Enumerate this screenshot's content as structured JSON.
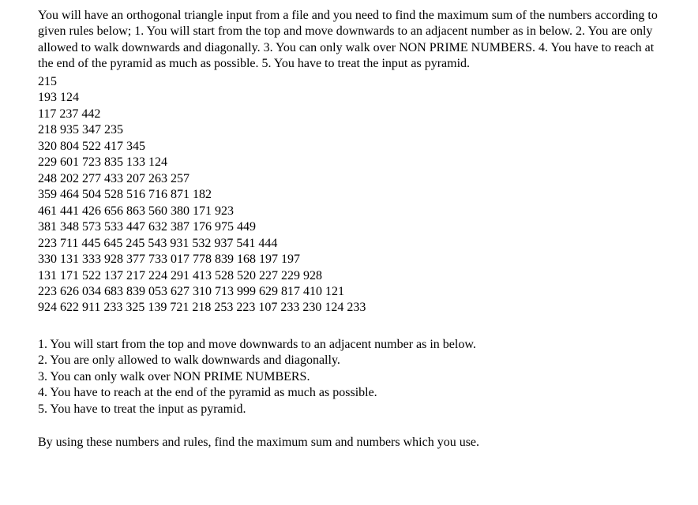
{
  "intro": "You will have an orthogonal triangle input from a file and you need to find the maximum sum of the numbers according to given rules below; 1. You will start from the top and move downwards to an adjacent number as in below. 2. You are only allowed to walk downwards and diagonally. 3. You can only walk over NON PRIME NUMBERS. 4. You have to reach at the end of the pyramid as much as possible. 5. You have to treat the input as pyramid.",
  "pyramid": [
    "215",
    "193 124",
    "117 237 442",
    "218 935 347 235",
    "320 804 522 417 345",
    "229 601 723 835 133 124",
    "248 202 277 433 207 263 257",
    "359 464 504 528 516 716 871 182",
    "461 441 426 656 863 560 380 171 923",
    "381 348 573 533 447 632 387 176 975 449",
    "223 711 445 645 245 543 931 532 937 541 444",
    "330 131 333 928 377 733 017 778 839 168 197 197",
    "131 171 522 137 217 224 291 413 528 520 227 229 928",
    "223 626 034 683 839 053 627 310 713 999 629 817 410 121",
    "924 622 911 233 325 139 721 218 253 223 107 233 230 124 233"
  ],
  "rules": [
    "1. You will start from the top and move downwards to an adjacent number as in below.",
    "2. You are only allowed to walk downwards and diagonally.",
    "3. You can only walk over NON PRIME NUMBERS.",
    "4. You have to reach at the end of the pyramid as much as possible.",
    "5. You have to treat the input as pyramid."
  ],
  "closing": "By using these numbers and rules, find the maximum sum and numbers which you use."
}
